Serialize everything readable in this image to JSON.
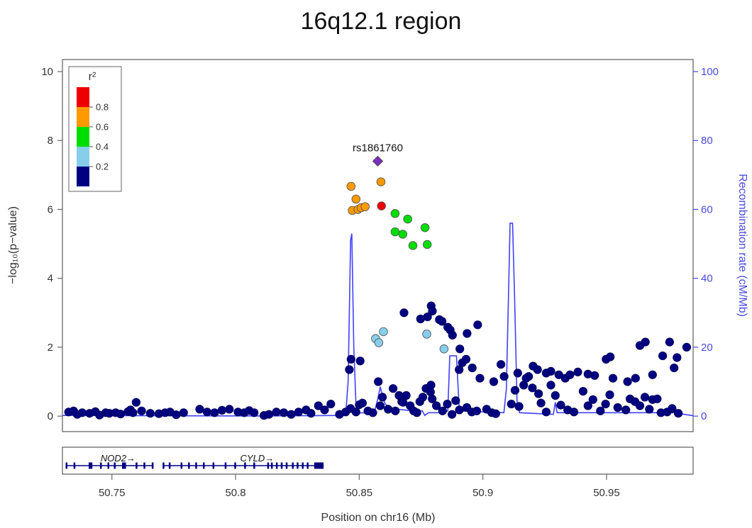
{
  "chart_data": {
    "type": "scatter",
    "title": "16q12.1 region",
    "xlabel": "Position on chr16 (Mb)",
    "ylabel": "−log₁₀(p−value)",
    "y2label": "Recombination rate (cM/Mb)",
    "xlim": [
      50.73,
      50.985
    ],
    "ylim": [
      -0.45,
      10.35
    ],
    "y2lim": [
      -4.5,
      103.5
    ],
    "xticks": [
      "50.75",
      "50.8",
      "50.85",
      "50.9",
      "50.95"
    ],
    "xtick_values": [
      50.75,
      50.8,
      50.85,
      50.9,
      50.95
    ],
    "yticks": [
      "0",
      "2",
      "4",
      "6",
      "8",
      "10"
    ],
    "ytick_values": [
      0,
      2,
      4,
      6,
      8,
      10
    ],
    "y2ticks": [
      "0",
      "20",
      "40",
      "60",
      "80",
      "100"
    ],
    "y2tick_values": [
      0,
      20,
      40,
      60,
      80,
      100
    ],
    "grid": false,
    "legend": {
      "title": "r²",
      "position": "top-left",
      "tick_labels": [
        "0.8",
        "0.6",
        "0.4",
        "0.2"
      ],
      "tick_values": [
        0.8,
        0.6,
        0.4,
        0.2
      ],
      "bins": [
        {
          "range": [
            0.8,
            1.0
          ],
          "color": "#ee0000"
        },
        {
          "range": [
            0.6,
            0.8
          ],
          "color": "#ff9900"
        },
        {
          "range": [
            0.4,
            0.6
          ],
          "color": "#00dd00"
        },
        {
          "range": [
            0.2,
            0.4
          ],
          "color": "#87ceeb"
        },
        {
          "range": [
            0.0,
            0.2
          ],
          "color": "#000080"
        }
      ]
    },
    "colors": {
      "red": "#ee0000",
      "orange": "#ff9900",
      "green": "#00dd00",
      "lightblue": "#87ceeb",
      "navy": "#000080",
      "lead": "#7b2fbe",
      "recombination": "#4040ff"
    },
    "lead_snp": {
      "label": "rs1861760",
      "x": 50.8575,
      "y": 7.4,
      "color": "lead"
    },
    "series": [
      {
        "color": "red",
        "points": [
          [
            50.859,
            6.1
          ]
        ]
      },
      {
        "color": "orange",
        "points": [
          [
            50.8467,
            6.67
          ],
          [
            50.8487,
            6.3
          ],
          [
            50.8472,
            5.97
          ],
          [
            50.8495,
            6.0
          ],
          [
            50.8508,
            6.05
          ],
          [
            50.8524,
            6.08
          ],
          [
            50.8588,
            6.8
          ]
        ]
      },
      {
        "color": "green",
        "points": [
          [
            50.8645,
            5.88
          ],
          [
            50.8645,
            5.35
          ],
          [
            50.8676,
            5.28
          ],
          [
            50.8696,
            5.72
          ],
          [
            50.8717,
            4.95
          ],
          [
            50.8766,
            5.47
          ],
          [
            50.8775,
            4.98
          ]
        ]
      },
      {
        "color": "lightblue",
        "points": [
          [
            50.8566,
            2.25
          ],
          [
            50.8579,
            2.13
          ],
          [
            50.8598,
            2.45
          ],
          [
            50.8773,
            2.38
          ],
          [
            50.8843,
            1.95
          ]
        ]
      },
      {
        "color": "navy",
        "points": [
          [
            50.7305,
            0.18
          ],
          [
            50.7325,
            0.12
          ],
          [
            50.7345,
            0.15
          ],
          [
            50.736,
            0.05
          ],
          [
            50.738,
            0.1
          ],
          [
            50.741,
            0.08
          ],
          [
            50.7433,
            0.13
          ],
          [
            50.745,
            0.03
          ],
          [
            50.7475,
            0.1
          ],
          [
            50.749,
            0.08
          ],
          [
            50.7515,
            0.1
          ],
          [
            50.7535,
            0.06
          ],
          [
            50.7565,
            0.13
          ],
          [
            50.7575,
            0.18
          ],
          [
            50.7585,
            0.1
          ],
          [
            50.7598,
            0.4
          ],
          [
            50.762,
            0.15
          ],
          [
            50.7655,
            0.08
          ],
          [
            50.769,
            0.07
          ],
          [
            50.7715,
            0.1
          ],
          [
            50.7735,
            0.12
          ],
          [
            50.776,
            0.04
          ],
          [
            50.779,
            0.1
          ],
          [
            50.7855,
            0.2
          ],
          [
            50.7885,
            0.12
          ],
          [
            50.7915,
            0.1
          ],
          [
            50.7945,
            0.17
          ],
          [
            50.7975,
            0.2
          ],
          [
            50.801,
            0.12
          ],
          [
            50.8035,
            0.1
          ],
          [
            50.8055,
            0.16
          ],
          [
            50.8075,
            0.1
          ],
          [
            50.8115,
            0.02
          ],
          [
            50.8135,
            0.05
          ],
          [
            50.8165,
            0.12
          ],
          [
            50.8195,
            0.1
          ],
          [
            50.8225,
            0.05
          ],
          [
            50.8255,
            0.12
          ],
          [
            50.8285,
            0.18
          ],
          [
            50.8305,
            0.08
          ],
          [
            50.8335,
            0.3
          ],
          [
            50.836,
            0.18
          ],
          [
            50.8385,
            0.35
          ],
          [
            50.842,
            0.05
          ],
          [
            50.8445,
            0.12
          ],
          [
            50.8465,
            0.22
          ],
          [
            50.8487,
            0.12
          ],
          [
            50.85,
            0.33
          ],
          [
            50.8513,
            0.38
          ],
          [
            50.8535,
            0.15
          ],
          [
            50.8555,
            0.1
          ],
          [
            50.8585,
            0.3
          ],
          [
            50.8617,
            0.2
          ],
          [
            50.8646,
            0.15
          ],
          [
            50.8672,
            0.42
          ],
          [
            50.869,
            0.6
          ],
          [
            50.8706,
            0.3
          ],
          [
            50.8733,
            0.1
          ],
          [
            50.8745,
            0.42
          ],
          [
            50.8757,
            0.55
          ],
          [
            50.877,
            0.8
          ],
          [
            50.879,
            0.9
          ],
          [
            50.8795,
            0.5
          ],
          [
            50.8812,
            0.3
          ],
          [
            50.8837,
            0.15
          ],
          [
            50.8856,
            0.35
          ],
          [
            50.8875,
            0.05
          ],
          [
            50.889,
            0.45
          ],
          [
            50.8905,
            0.18
          ],
          [
            50.8935,
            0.25
          ],
          [
            50.8955,
            0.12
          ],
          [
            50.8975,
            0.15
          ],
          [
            50.9015,
            0.2
          ],
          [
            50.9036,
            0.1
          ],
          [
            50.9052,
            0.07
          ],
          [
            50.9086,
            1.15
          ],
          [
            50.9115,
            0.35
          ],
          [
            50.913,
            0.75
          ],
          [
            50.9146,
            0.28
          ],
          [
            50.9165,
            0.9
          ],
          [
            50.9185,
            1.15
          ],
          [
            50.92,
            0.82
          ],
          [
            50.9225,
            0.65
          ],
          [
            50.9235,
            0.38
          ],
          [
            50.9256,
            0.12
          ],
          [
            50.9275,
            0.9
          ],
          [
            50.9293,
            0.6
          ],
          [
            50.9315,
            0.32
          ],
          [
            50.9343,
            0.18
          ],
          [
            50.9368,
            0.12
          ],
          [
            50.9405,
            0.72
          ],
          [
            50.9425,
            0.3
          ],
          [
            50.9445,
            0.48
          ],
          [
            50.9475,
            0.15
          ],
          [
            50.9496,
            0.35
          ],
          [
            50.9513,
            0.62
          ],
          [
            50.9545,
            0.25
          ],
          [
            50.9578,
            0.18
          ],
          [
            50.9595,
            0.5
          ],
          [
            50.9615,
            0.42
          ],
          [
            50.9635,
            0.3
          ],
          [
            50.9655,
            0.55
          ],
          [
            50.9673,
            0.2
          ],
          [
            50.9686,
            0.48
          ],
          [
            50.9705,
            0.5
          ],
          [
            50.972,
            0.1
          ],
          [
            50.9745,
            0.12
          ],
          [
            50.9765,
            0.22
          ],
          [
            50.979,
            0.08
          ],
          [
            50.846,
            1.35
          ],
          [
            50.8467,
            1.65
          ],
          [
            50.8504,
            1.6
          ],
          [
            50.8577,
            1.0
          ],
          [
            50.8594,
            0.55
          ],
          [
            50.8637,
            0.8
          ],
          [
            50.8661,
            0.6
          ],
          [
            50.8677,
            0.4
          ],
          [
            50.8681,
            3.0
          ],
          [
            50.872,
            0.15
          ],
          [
            50.8748,
            2.82
          ],
          [
            50.8776,
            2.88
          ],
          [
            50.8788,
            0.7
          ],
          [
            50.8791,
            3.2
          ],
          [
            50.8796,
            3.05
          ],
          [
            50.8824,
            2.8
          ],
          [
            50.8835,
            2.75
          ],
          [
            50.8858,
            2.58
          ],
          [
            50.8868,
            2.5
          ],
          [
            50.8877,
            2.35
          ],
          [
            50.8904,
            1.35
          ],
          [
            50.8907,
            1.95
          ],
          [
            50.8917,
            1.55
          ],
          [
            50.8932,
            1.65
          ],
          [
            50.8936,
            2.4
          ],
          [
            50.8957,
            1.4
          ],
          [
            50.8979,
            2.65
          ],
          [
            50.8988,
            1.1
          ],
          [
            50.9044,
            1.0
          ],
          [
            50.9073,
            1.5
          ],
          [
            50.9141,
            1.25
          ],
          [
            50.9175,
            1.1
          ],
          [
            50.9203,
            1.45
          ],
          [
            50.9221,
            1.35
          ],
          [
            50.9256,
            1.25
          ],
          [
            50.9275,
            1.3
          ],
          [
            50.9307,
            1.2
          ],
          [
            50.9333,
            1.1
          ],
          [
            50.9352,
            1.2
          ],
          [
            50.9384,
            1.28
          ],
          [
            50.9425,
            1.22
          ],
          [
            50.9452,
            1.18
          ],
          [
            50.9498,
            1.65
          ],
          [
            50.9515,
            1.72
          ],
          [
            50.9526,
            1.1
          ],
          [
            50.9585,
            1.0
          ],
          [
            50.9617,
            1.1
          ],
          [
            50.9635,
            2.05
          ],
          [
            50.9657,
            2.15
          ],
          [
            50.9686,
            1.2
          ],
          [
            50.9727,
            1.75
          ],
          [
            50.9755,
            2.15
          ],
          [
            50.9785,
            1.7
          ],
          [
            50.9824,
            2.0
          ],
          [
            50.9773,
            1.4
          ],
          [
            50.9853,
            2.25
          ]
        ]
      }
    ],
    "recombination": [
      [
        50.73,
        0.2
      ],
      [
        50.77,
        0.1
      ],
      [
        50.81,
        0.05
      ],
      [
        50.8445,
        0.2
      ],
      [
        50.8455,
        10
      ],
      [
        50.8465,
        51
      ],
      [
        50.847,
        53
      ],
      [
        50.8478,
        20
      ],
      [
        50.8488,
        1
      ],
      [
        50.856,
        0.8
      ],
      [
        50.8575,
        5
      ],
      [
        50.8585,
        8.5
      ],
      [
        50.8595,
        5.5
      ],
      [
        50.8605,
        3.5
      ],
      [
        50.8625,
        2.5
      ],
      [
        50.8655,
        2
      ],
      [
        50.872,
        1.5
      ],
      [
        50.8755,
        1.5
      ],
      [
        50.8765,
        0.2
      ],
      [
        50.878,
        1
      ],
      [
        50.884,
        1
      ],
      [
        50.8858,
        1.5
      ],
      [
        50.8866,
        17.5
      ],
      [
        50.8893,
        17.5
      ],
      [
        50.8905,
        1.5
      ],
      [
        50.9085,
        1
      ],
      [
        50.9095,
        8
      ],
      [
        50.9105,
        40
      ],
      [
        50.911,
        56
      ],
      [
        50.912,
        56
      ],
      [
        50.9128,
        35
      ],
      [
        50.9138,
        4
      ],
      [
        50.9148,
        1
      ],
      [
        50.9285,
        0.5
      ],
      [
        50.9293,
        4
      ],
      [
        50.93,
        1
      ],
      [
        50.978,
        1
      ],
      [
        50.9815,
        0.5
      ],
      [
        50.985,
        0.1
      ]
    ],
    "genes": [
      {
        "label": "NOD2→",
        "label_x": 50.7525,
        "start": 50.7313,
        "end": 50.7667,
        "exons": [
          [
            50.7313,
            50.7318
          ],
          [
            50.7345,
            50.735
          ],
          [
            50.7406,
            50.7421
          ],
          [
            50.7452,
            50.7457
          ],
          [
            50.7482,
            50.7487
          ],
          [
            50.7508,
            50.7512
          ],
          [
            50.7541,
            50.7557
          ],
          [
            50.7596,
            50.76
          ],
          [
            50.7628,
            50.7634
          ],
          [
            50.7661,
            50.7667
          ]
        ]
      },
      {
        "label": "CYLD→",
        "label_x": 50.8087,
        "start": 50.7705,
        "end": 50.8356,
        "exons": [
          [
            50.7705,
            50.771
          ],
          [
            50.773,
            50.7735
          ],
          [
            50.7778,
            50.7783
          ],
          [
            50.7808,
            50.7813
          ],
          [
            50.7837,
            50.7842
          ],
          [
            50.7868,
            50.7873
          ],
          [
            50.7907,
            50.7912
          ],
          [
            50.7956,
            50.7961
          ],
          [
            50.7995,
            50.8
          ],
          [
            50.8035,
            50.804
          ],
          [
            50.8072,
            50.8078
          ],
          [
            50.8128,
            50.8133
          ],
          [
            50.8143,
            50.8148
          ],
          [
            50.8163,
            50.8168
          ],
          [
            50.8183,
            50.8188
          ],
          [
            50.8203,
            50.8208
          ],
          [
            50.8228,
            50.8233
          ],
          [
            50.8247,
            50.8252
          ],
          [
            50.8268,
            50.8273
          ],
          [
            50.8288,
            50.8293
          ],
          [
            50.8318,
            50.8356
          ]
        ]
      }
    ]
  }
}
